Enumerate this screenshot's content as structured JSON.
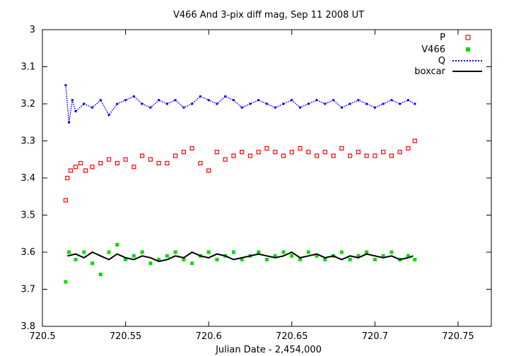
{
  "chart_data": {
    "type": "scatter",
    "title": "V466 And  3-pix diff mag, Sep 11 2008 UT",
    "xlabel": "Julian Date - 2,454,000",
    "ylabel": "",
    "xlim": [
      720.5,
      720.77
    ],
    "ylim": [
      3.8,
      3.0
    ],
    "y_inverted": true,
    "grid": false,
    "legend_position": "top-right",
    "x_ticks": [
      720.5,
      720.55,
      720.6,
      720.65,
      720.7,
      720.75
    ],
    "x_tick_labels": [
      "720.5",
      "720.55",
      "720.6",
      "720.65",
      "720.7",
      "720.75"
    ],
    "y_ticks": [
      3.0,
      3.1,
      3.2,
      3.3,
      3.4,
      3.5,
      3.6,
      3.7,
      3.8
    ],
    "y_tick_labels": [
      "3",
      "3.1",
      "3.2",
      "3.3",
      "3.4",
      "3.5",
      "3.6",
      "3.7",
      "3.8"
    ],
    "series": [
      {
        "name": "P",
        "marker": "open-square",
        "color": "#ff0000",
        "x": [
          720.514,
          720.515,
          720.517,
          720.52,
          720.523,
          720.526,
          720.53,
          720.535,
          720.54,
          720.545,
          720.55,
          720.555,
          720.56,
          720.565,
          720.57,
          720.575,
          720.58,
          720.585,
          720.59,
          720.595,
          720.6,
          720.605,
          720.61,
          720.615,
          720.62,
          720.625,
          720.63,
          720.635,
          720.64,
          720.645,
          720.65,
          720.655,
          720.66,
          720.665,
          720.67,
          720.675,
          720.68,
          720.685,
          720.69,
          720.695,
          720.7,
          720.705,
          720.71,
          720.715,
          720.72,
          720.724
        ],
        "values": [
          3.46,
          3.4,
          3.38,
          3.37,
          3.36,
          3.38,
          3.37,
          3.36,
          3.35,
          3.36,
          3.35,
          3.37,
          3.34,
          3.35,
          3.36,
          3.36,
          3.34,
          3.33,
          3.32,
          3.36,
          3.38,
          3.33,
          3.35,
          3.34,
          3.33,
          3.34,
          3.33,
          3.32,
          3.33,
          3.34,
          3.33,
          3.32,
          3.33,
          3.34,
          3.33,
          3.34,
          3.32,
          3.34,
          3.33,
          3.34,
          3.34,
          3.33,
          3.34,
          3.33,
          3.32,
          3.3
        ]
      },
      {
        "name": "V466",
        "marker": "filled-square",
        "color": "#00dd00",
        "x": [
          720.514,
          720.516,
          720.52,
          720.525,
          720.53,
          720.535,
          720.54,
          720.545,
          720.55,
          720.555,
          720.56,
          720.565,
          720.57,
          720.575,
          720.58,
          720.585,
          720.59,
          720.595,
          720.6,
          720.605,
          720.61,
          720.615,
          720.62,
          720.625,
          720.63,
          720.635,
          720.64,
          720.645,
          720.65,
          720.655,
          720.66,
          720.665,
          720.67,
          720.675,
          720.68,
          720.685,
          720.69,
          720.695,
          720.7,
          720.705,
          720.71,
          720.715,
          720.72,
          720.724
        ],
        "values": [
          3.68,
          3.6,
          3.62,
          3.6,
          3.63,
          3.66,
          3.6,
          3.58,
          3.62,
          3.61,
          3.6,
          3.63,
          3.62,
          3.61,
          3.6,
          3.62,
          3.63,
          3.61,
          3.6,
          3.62,
          3.61,
          3.6,
          3.62,
          3.61,
          3.6,
          3.62,
          3.61,
          3.6,
          3.61,
          3.62,
          3.6,
          3.61,
          3.62,
          3.61,
          3.6,
          3.62,
          3.61,
          3.6,
          3.62,
          3.61,
          3.6,
          3.62,
          3.61,
          3.62
        ]
      },
      {
        "name": "Q",
        "marker": "dotted-line",
        "color": "#0000ff",
        "x": [
          720.514,
          720.516,
          720.518,
          720.52,
          720.525,
          720.53,
          720.535,
          720.54,
          720.545,
          720.55,
          720.555,
          720.56,
          720.565,
          720.57,
          720.575,
          720.58,
          720.585,
          720.59,
          720.595,
          720.6,
          720.605,
          720.61,
          720.615,
          720.62,
          720.625,
          720.63,
          720.635,
          720.64,
          720.645,
          720.65,
          720.655,
          720.66,
          720.665,
          720.67,
          720.675,
          720.68,
          720.685,
          720.69,
          720.695,
          720.7,
          720.705,
          720.71,
          720.715,
          720.72,
          720.724
        ],
        "values": [
          3.15,
          3.25,
          3.19,
          3.22,
          3.2,
          3.21,
          3.19,
          3.23,
          3.2,
          3.19,
          3.18,
          3.2,
          3.21,
          3.19,
          3.2,
          3.19,
          3.21,
          3.2,
          3.18,
          3.19,
          3.2,
          3.18,
          3.19,
          3.21,
          3.2,
          3.19,
          3.2,
          3.21,
          3.2,
          3.19,
          3.21,
          3.2,
          3.19,
          3.2,
          3.19,
          3.21,
          3.2,
          3.19,
          3.2,
          3.21,
          3.2,
          3.19,
          3.2,
          3.19,
          3.2
        ]
      },
      {
        "name": "boxcar",
        "marker": "solid-line",
        "color": "#000000",
        "x": [
          720.515,
          720.52,
          720.525,
          720.53,
          720.535,
          720.54,
          720.545,
          720.55,
          720.555,
          720.56,
          720.565,
          720.57,
          720.575,
          720.58,
          720.585,
          720.59,
          720.595,
          720.6,
          720.605,
          720.61,
          720.615,
          720.62,
          720.625,
          720.63,
          720.635,
          720.64,
          720.645,
          720.65,
          720.655,
          720.66,
          720.665,
          720.67,
          720.675,
          720.68,
          720.685,
          720.69,
          720.695,
          720.7,
          720.705,
          720.71,
          720.715,
          720.72,
          720.723
        ],
        "values": [
          3.61,
          3.605,
          3.615,
          3.6,
          3.61,
          3.62,
          3.605,
          3.615,
          3.62,
          3.61,
          3.615,
          3.625,
          3.62,
          3.61,
          3.615,
          3.6,
          3.61,
          3.615,
          3.605,
          3.61,
          3.62,
          3.615,
          3.61,
          3.605,
          3.61,
          3.615,
          3.61,
          3.6,
          3.615,
          3.61,
          3.605,
          3.615,
          3.61,
          3.62,
          3.61,
          3.615,
          3.605,
          3.61,
          3.615,
          3.61,
          3.62,
          3.615,
          3.61
        ]
      }
    ]
  }
}
